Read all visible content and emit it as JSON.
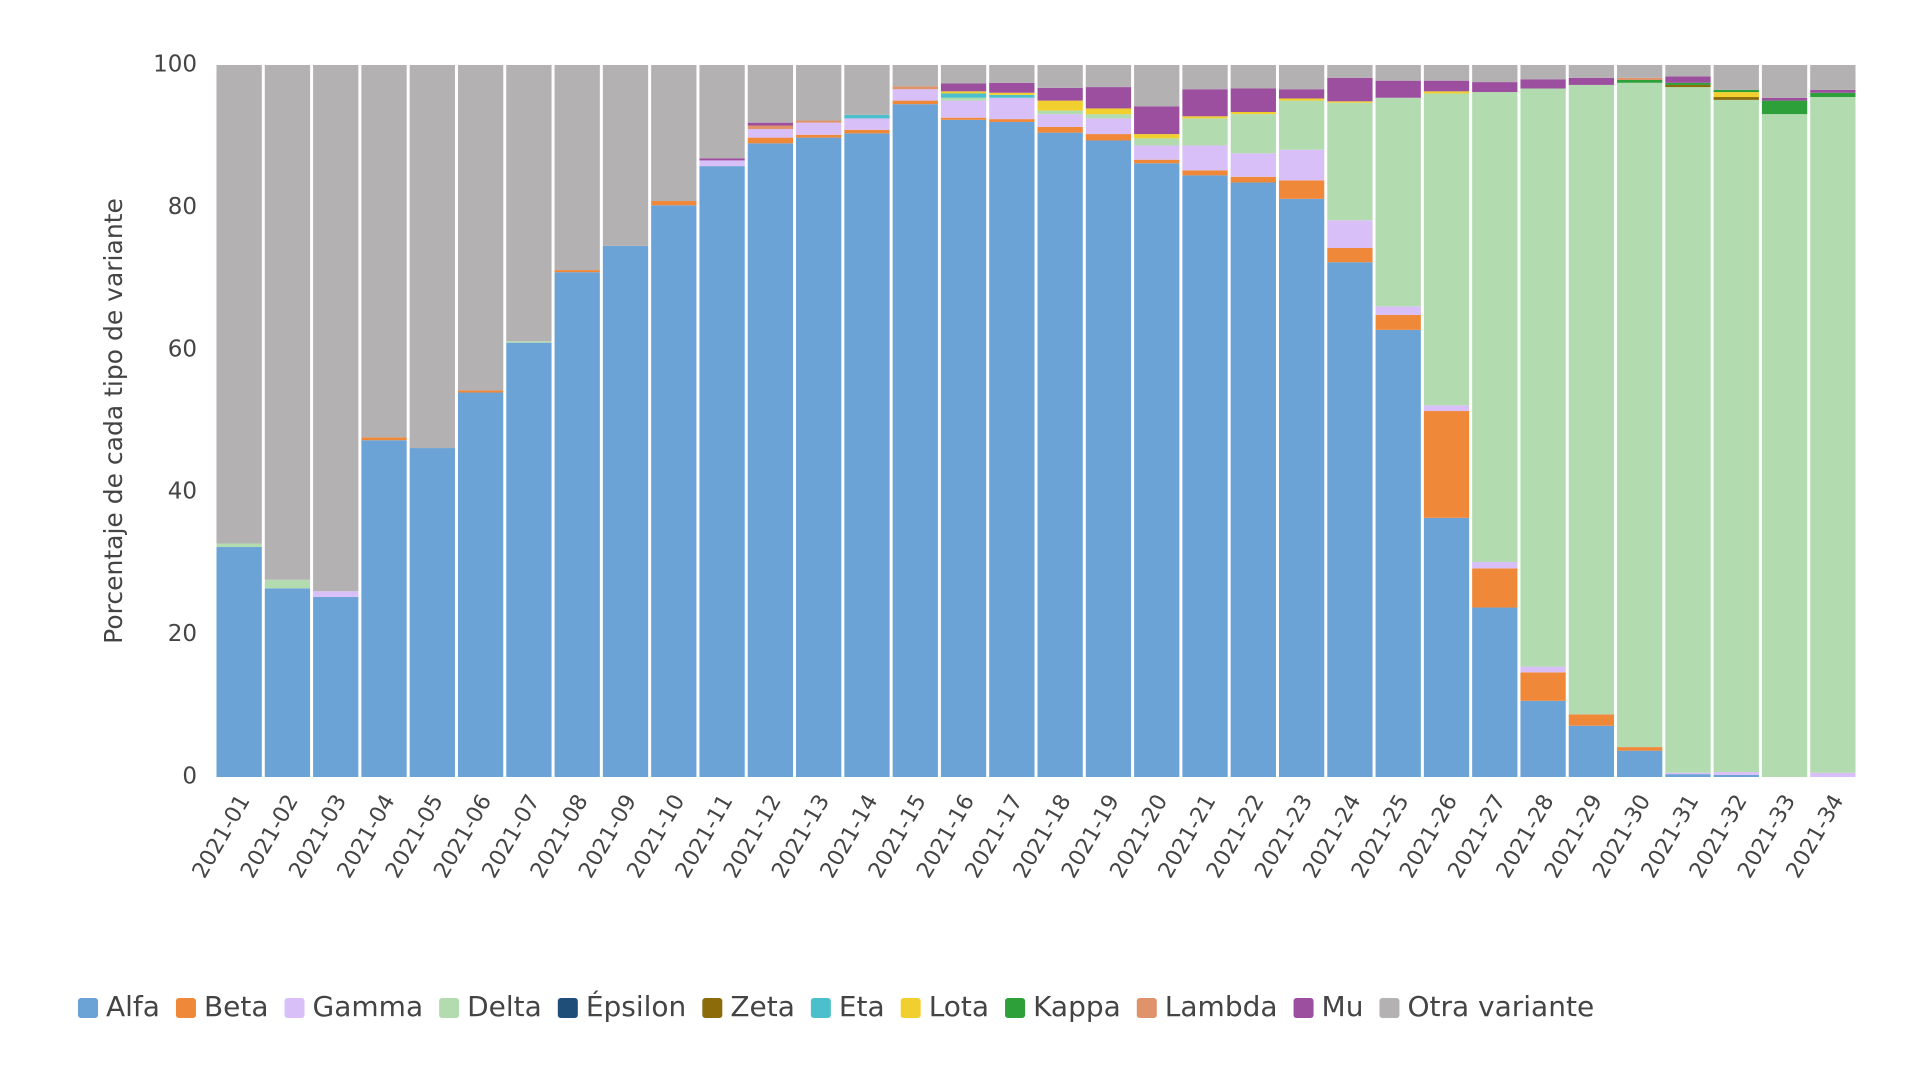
{
  "chart_data": {
    "type": "stacked_bar",
    "y_label": "Porcentaje de cada tipo de variante",
    "ylim": [
      0,
      100
    ],
    "yticks": [
      0,
      20,
      40,
      60,
      80,
      100
    ],
    "grid": false,
    "legend": "bottom",
    "categories": [
      "2021-01",
      "2021-02",
      "2021-03",
      "2021-04",
      "2021-05",
      "2021-06",
      "2021-07",
      "2021-08",
      "2021-09",
      "2021-10",
      "2021-11",
      "2021-12",
      "2021-13",
      "2021-14",
      "2021-15",
      "2021-16",
      "2021-17",
      "2021-18",
      "2021-19",
      "2021-20",
      "2021-21",
      "2021-22",
      "2021-23",
      "2021-24",
      "2021-25",
      "2021-26",
      "2021-27",
      "2021-28",
      "2021-29",
      "2021-30",
      "2021-31",
      "2021-32",
      "2021-33",
      "2021-34"
    ],
    "series": [
      {
        "name": "Alfa",
        "color": "#6ba3d6",
        "values": [
          32.3,
          26.5,
          25.3,
          47.3,
          46.2,
          54.0,
          61.0,
          70.9,
          74.6,
          80.3,
          85.8,
          89.0,
          89.8,
          90.4,
          94.5,
          92.3,
          92.0,
          90.5,
          89.4,
          86.2,
          84.5,
          83.5,
          81.2,
          72.3,
          62.8,
          36.4,
          23.8,
          10.7,
          7.2,
          3.7,
          0.4,
          0.3,
          0,
          0
        ]
      },
      {
        "name": "Beta",
        "color": "#f0883a",
        "values": [
          0,
          0,
          0,
          0.4,
          0,
          0.3,
          0,
          0.3,
          0,
          0.6,
          0,
          0.8,
          0.4,
          0.5,
          0.5,
          0.3,
          0.4,
          0.8,
          0.9,
          0.5,
          0.7,
          0.8,
          2.6,
          2.0,
          2.1,
          15.0,
          5.5,
          4.0,
          1.6,
          0.5,
          0,
          0,
          0,
          0
        ]
      },
      {
        "name": "Gamma",
        "color": "#d9bff7",
        "values": [
          0,
          0,
          0.8,
          0,
          0,
          0,
          0,
          0,
          0,
          0,
          0.8,
          1.2,
          1.7,
          1.6,
          1.6,
          2.4,
          3.0,
          1.8,
          2.2,
          2.0,
          3.5,
          3.3,
          4.3,
          3.9,
          1.2,
          0.8,
          0.9,
          0.8,
          0,
          0,
          0.2,
          0.4,
          0,
          0.6
        ]
      },
      {
        "name": "Delta",
        "color": "#b3dbb0",
        "values": [
          0.5,
          1.2,
          0,
          0,
          0,
          0,
          0.2,
          0,
          0,
          0,
          0,
          0,
          0,
          0,
          0,
          0.4,
          0,
          0.5,
          0.6,
          1.0,
          3.8,
          5.5,
          6.9,
          16.5,
          29.3,
          43.8,
          66.0,
          81.2,
          88.4,
          93.3,
          96.3,
          94.4,
          93.1,
          94.9
        ]
      },
      {
        "name": "Épsilon",
        "color": "#1f4e79",
        "values": [
          0,
          0,
          0,
          0,
          0,
          0,
          0,
          0,
          0,
          0,
          0,
          0,
          0,
          0,
          0,
          0,
          0,
          0,
          0,
          0,
          0,
          0,
          0,
          0,
          0,
          0,
          0,
          0,
          0,
          0,
          0,
          0,
          0,
          0
        ]
      },
      {
        "name": "Zeta",
        "color": "#8b6b0a",
        "values": [
          0,
          0,
          0,
          0,
          0,
          0,
          0,
          0,
          0,
          0,
          0,
          0,
          0,
          0,
          0,
          0,
          0,
          0,
          0,
          0,
          0,
          0,
          0,
          0,
          0,
          0,
          0,
          0,
          0,
          0,
          0.3,
          0.4,
          0,
          0
        ]
      },
      {
        "name": "Eta",
        "color": "#4bc0cc",
        "values": [
          0,
          0,
          0,
          0,
          0,
          0,
          0,
          0,
          0,
          0,
          0,
          0,
          0,
          0.5,
          0,
          0.6,
          0.4,
          0,
          0,
          0,
          0,
          0,
          0,
          0,
          0,
          0,
          0,
          0,
          0,
          0,
          0,
          0,
          0,
          0
        ]
      },
      {
        "name": "Lota",
        "color": "#f1cf2f",
        "values": [
          0,
          0,
          0,
          0,
          0,
          0,
          0,
          0,
          0,
          0,
          0,
          0,
          0,
          0,
          0,
          0.3,
          0.3,
          1.4,
          0.8,
          0.6,
          0.3,
          0.3,
          0.3,
          0.2,
          0,
          0.3,
          0,
          0,
          0,
          0,
          0,
          0.7,
          0,
          0
        ]
      },
      {
        "name": "Kappa",
        "color": "#2ea03a",
        "values": [
          0,
          0,
          0,
          0,
          0,
          0,
          0,
          0,
          0,
          0,
          0,
          0,
          0,
          0,
          0,
          0,
          0,
          0,
          0,
          0,
          0,
          0,
          0,
          0,
          0,
          0,
          0,
          0,
          0,
          0.4,
          0.3,
          0.3,
          1.9,
          0.6
        ]
      },
      {
        "name": "Lambda",
        "color": "#e0926a",
        "values": [
          0,
          0,
          0,
          0,
          0,
          0,
          0,
          0,
          0,
          0,
          0,
          0.5,
          0.3,
          0,
          0.4,
          0,
          0,
          0,
          0,
          0,
          0,
          0,
          0,
          0,
          0,
          0,
          0,
          0,
          0,
          0.3,
          0,
          0,
          0,
          0
        ]
      },
      {
        "name": "Mu",
        "color": "#9c4f9f",
        "values": [
          0,
          0,
          0,
          0,
          0,
          0,
          0,
          0,
          0,
          0,
          0.3,
          0.4,
          0,
          0,
          0,
          1.1,
          1.4,
          1.8,
          3.0,
          3.9,
          3.8,
          3.3,
          1.3,
          3.3,
          2.4,
          1.5,
          1.4,
          1.3,
          1.0,
          0,
          0.9,
          0,
          0.4,
          0.4
        ]
      },
      {
        "name": "Otra variante",
        "color": "#b3b1b2",
        "values": [
          67.2,
          72.3,
          73.9,
          52.3,
          53.8,
          45.7,
          38.8,
          28.8,
          25.4,
          19.1,
          13.1,
          8.1,
          7.8,
          7.0,
          3.0,
          2.6,
          2.5,
          3.2,
          3.1,
          5.8,
          3.4,
          3.3,
          3.4,
          1.8,
          2.2,
          2.2,
          2.4,
          2.0,
          1.8,
          1.8,
          1.6,
          3.5,
          4.6,
          3.5
        ]
      }
    ]
  }
}
